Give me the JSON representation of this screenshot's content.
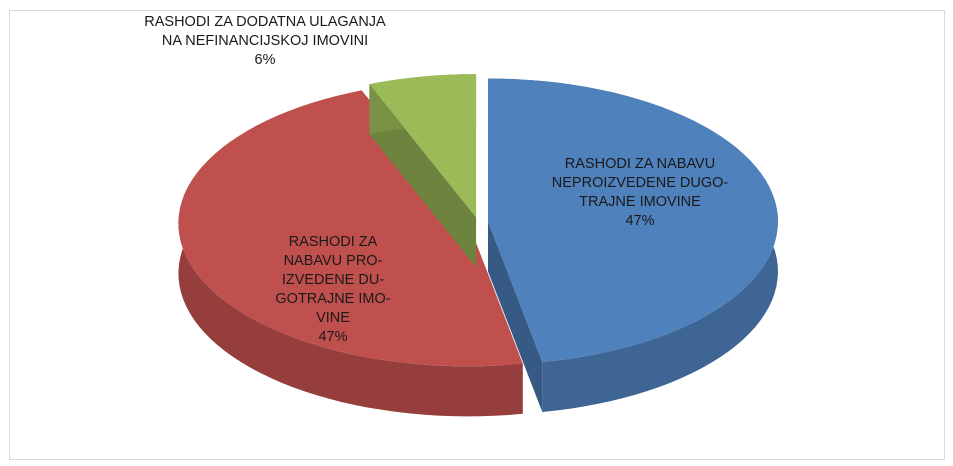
{
  "chart_data": {
    "type": "pie",
    "three_d": true,
    "exploded": true,
    "categories": [
      "RASHODI ZA NABAVU\nNEPROIZVEDENE DUGO-\nTRAJNE IMOVINE",
      "RASHODI ZA\nNABAVU PRO-\nIZVEDENE DU-\nGOTRAJNE IMO-\nVINE",
      "RASHODI ZA DODATNA ULAGANJA\nNA NEFINANCIJSKOJ IMOVINI"
    ],
    "values": [
      47,
      47,
      6
    ],
    "value_labels": [
      "47%",
      "47%",
      "6%"
    ],
    "colors": [
      "#4f81bd",
      "#c0504d",
      "#9bbb59"
    ]
  }
}
